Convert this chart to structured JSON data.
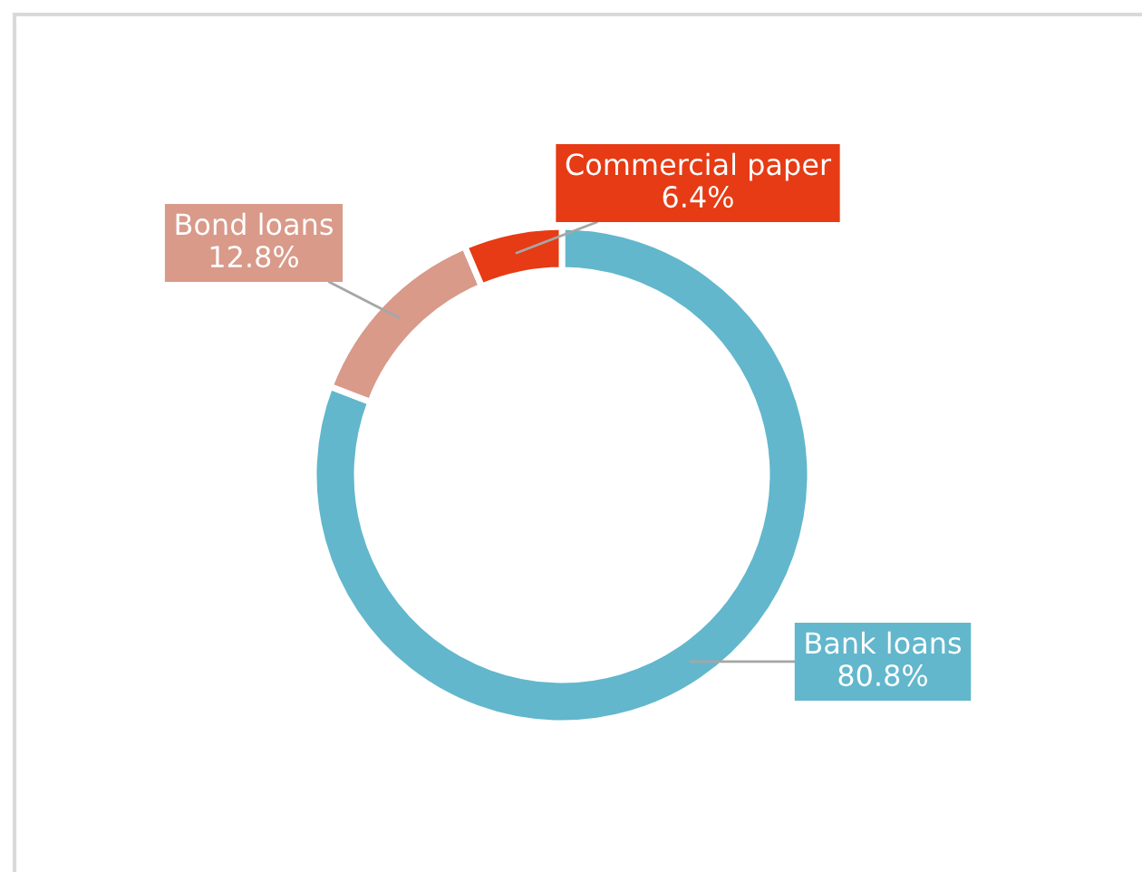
{
  "chart_data": {
    "type": "donut",
    "categories": [
      "Bank loans",
      "Bond loans",
      "Commercial paper"
    ],
    "values": [
      80.8,
      12.8,
      6.4
    ],
    "colors": [
      "#62b7cc",
      "#d99a8a",
      "#e63b14"
    ],
    "value_labels": [
      "80.8%",
      "12.8%",
      "6.4%"
    ],
    "legend": false
  }
}
